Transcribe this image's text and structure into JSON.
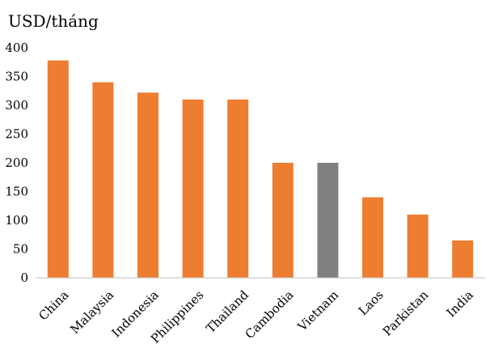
{
  "chart_data": {
    "type": "bar",
    "ylabel": "USD/tháng",
    "categories": [
      "China",
      "Malaysia",
      "Indonesia",
      "Philippines",
      "Thailand",
      "Cambodia",
      "Vietnam",
      "Laos",
      "Parkistan",
      "India"
    ],
    "values": [
      378,
      340,
      322,
      310,
      310,
      200,
      200,
      140,
      110,
      65
    ],
    "highlight_category": "Vietnam",
    "colors": {
      "default": "#ed7d31",
      "highlight": "#808080"
    },
    "ylim": [
      0,
      400
    ],
    "yticks": [
      0,
      50,
      100,
      150,
      200,
      250,
      300,
      350,
      400
    ],
    "grid": false,
    "legend": "none"
  }
}
